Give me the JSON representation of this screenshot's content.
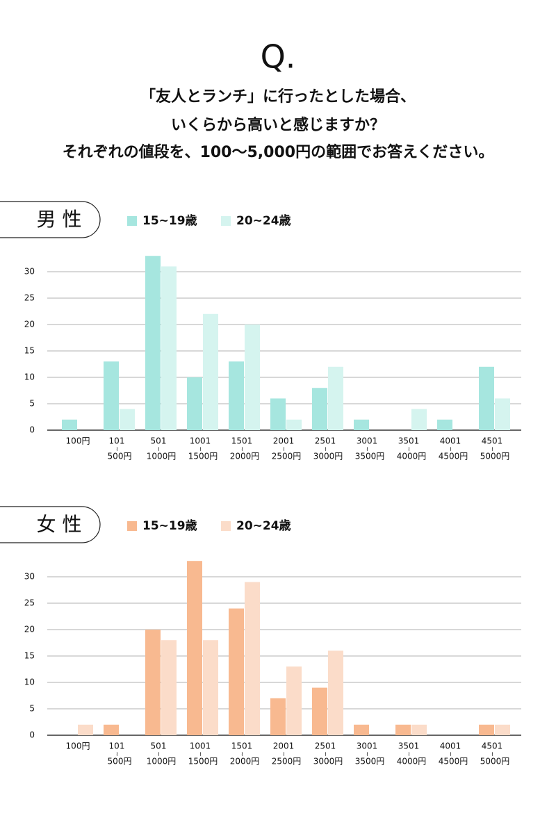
{
  "header": {
    "q": "Q.",
    "lines": [
      "「友人とランチ」に行ったとした場合、",
      "いくらから高いと感じますか？",
      "それぞれの値段を、100〜5,000円の範囲でお答えください。"
    ]
  },
  "chart_data": [
    {
      "type": "bar",
      "title": "男 性",
      "categories": [
        [
          "100円"
        ],
        [
          "101",
          "~",
          "500円"
        ],
        [
          "501",
          "~",
          "1000円"
        ],
        [
          "1001",
          "~",
          "1500円"
        ],
        [
          "1501",
          "~",
          "2000円"
        ],
        [
          "2001",
          "~",
          "2500円"
        ],
        [
          "2501",
          "~",
          "3000円"
        ],
        [
          "3001",
          "~",
          "3500円"
        ],
        [
          "3501",
          "~",
          "4000円"
        ],
        [
          "4001",
          "~",
          "4500円"
        ],
        [
          "4501",
          "~",
          "5000円"
        ]
      ],
      "series": [
        {
          "name": "15~19歳",
          "color": "#a6e6df",
          "values": [
            2,
            13,
            33,
            10,
            13,
            6,
            8,
            2,
            0,
            2,
            12
          ]
        },
        {
          "name": "20~24歳",
          "color": "#d5f4ef",
          "values": [
            0,
            4,
            31,
            22,
            20,
            2,
            12,
            0,
            4,
            0,
            6
          ]
        }
      ],
      "ylim": [
        0,
        33
      ],
      "yticks": [
        0,
        5,
        10,
        15,
        20,
        25,
        30
      ],
      "grid": true
    },
    {
      "type": "bar",
      "title": "女 性",
      "categories": [
        [
          "100円"
        ],
        [
          "101",
          "~",
          "500円"
        ],
        [
          "501",
          "~",
          "1000円"
        ],
        [
          "1001",
          "~",
          "1500円"
        ],
        [
          "1501",
          "~",
          "2000円"
        ],
        [
          "2001",
          "~",
          "2500円"
        ],
        [
          "2501",
          "~",
          "3000円"
        ],
        [
          "3001",
          "~",
          "3500円"
        ],
        [
          "3501",
          "~",
          "4000円"
        ],
        [
          "4001",
          "~",
          "4500円"
        ],
        [
          "4501",
          "~",
          "5000円"
        ]
      ],
      "series": [
        {
          "name": "15~19歳",
          "color": "#f8b990",
          "values": [
            0,
            2,
            20,
            33,
            24,
            7,
            9,
            2,
            2,
            0,
            2
          ]
        },
        {
          "name": "20~24歳",
          "color": "#fbdcc9",
          "values": [
            2,
            0,
            18,
            18,
            29,
            13,
            16,
            0,
            2,
            0,
            2
          ]
        }
      ],
      "ylim": [
        0,
        33
      ],
      "yticks": [
        0,
        5,
        10,
        15,
        20,
        25,
        30
      ],
      "grid": true
    }
  ]
}
